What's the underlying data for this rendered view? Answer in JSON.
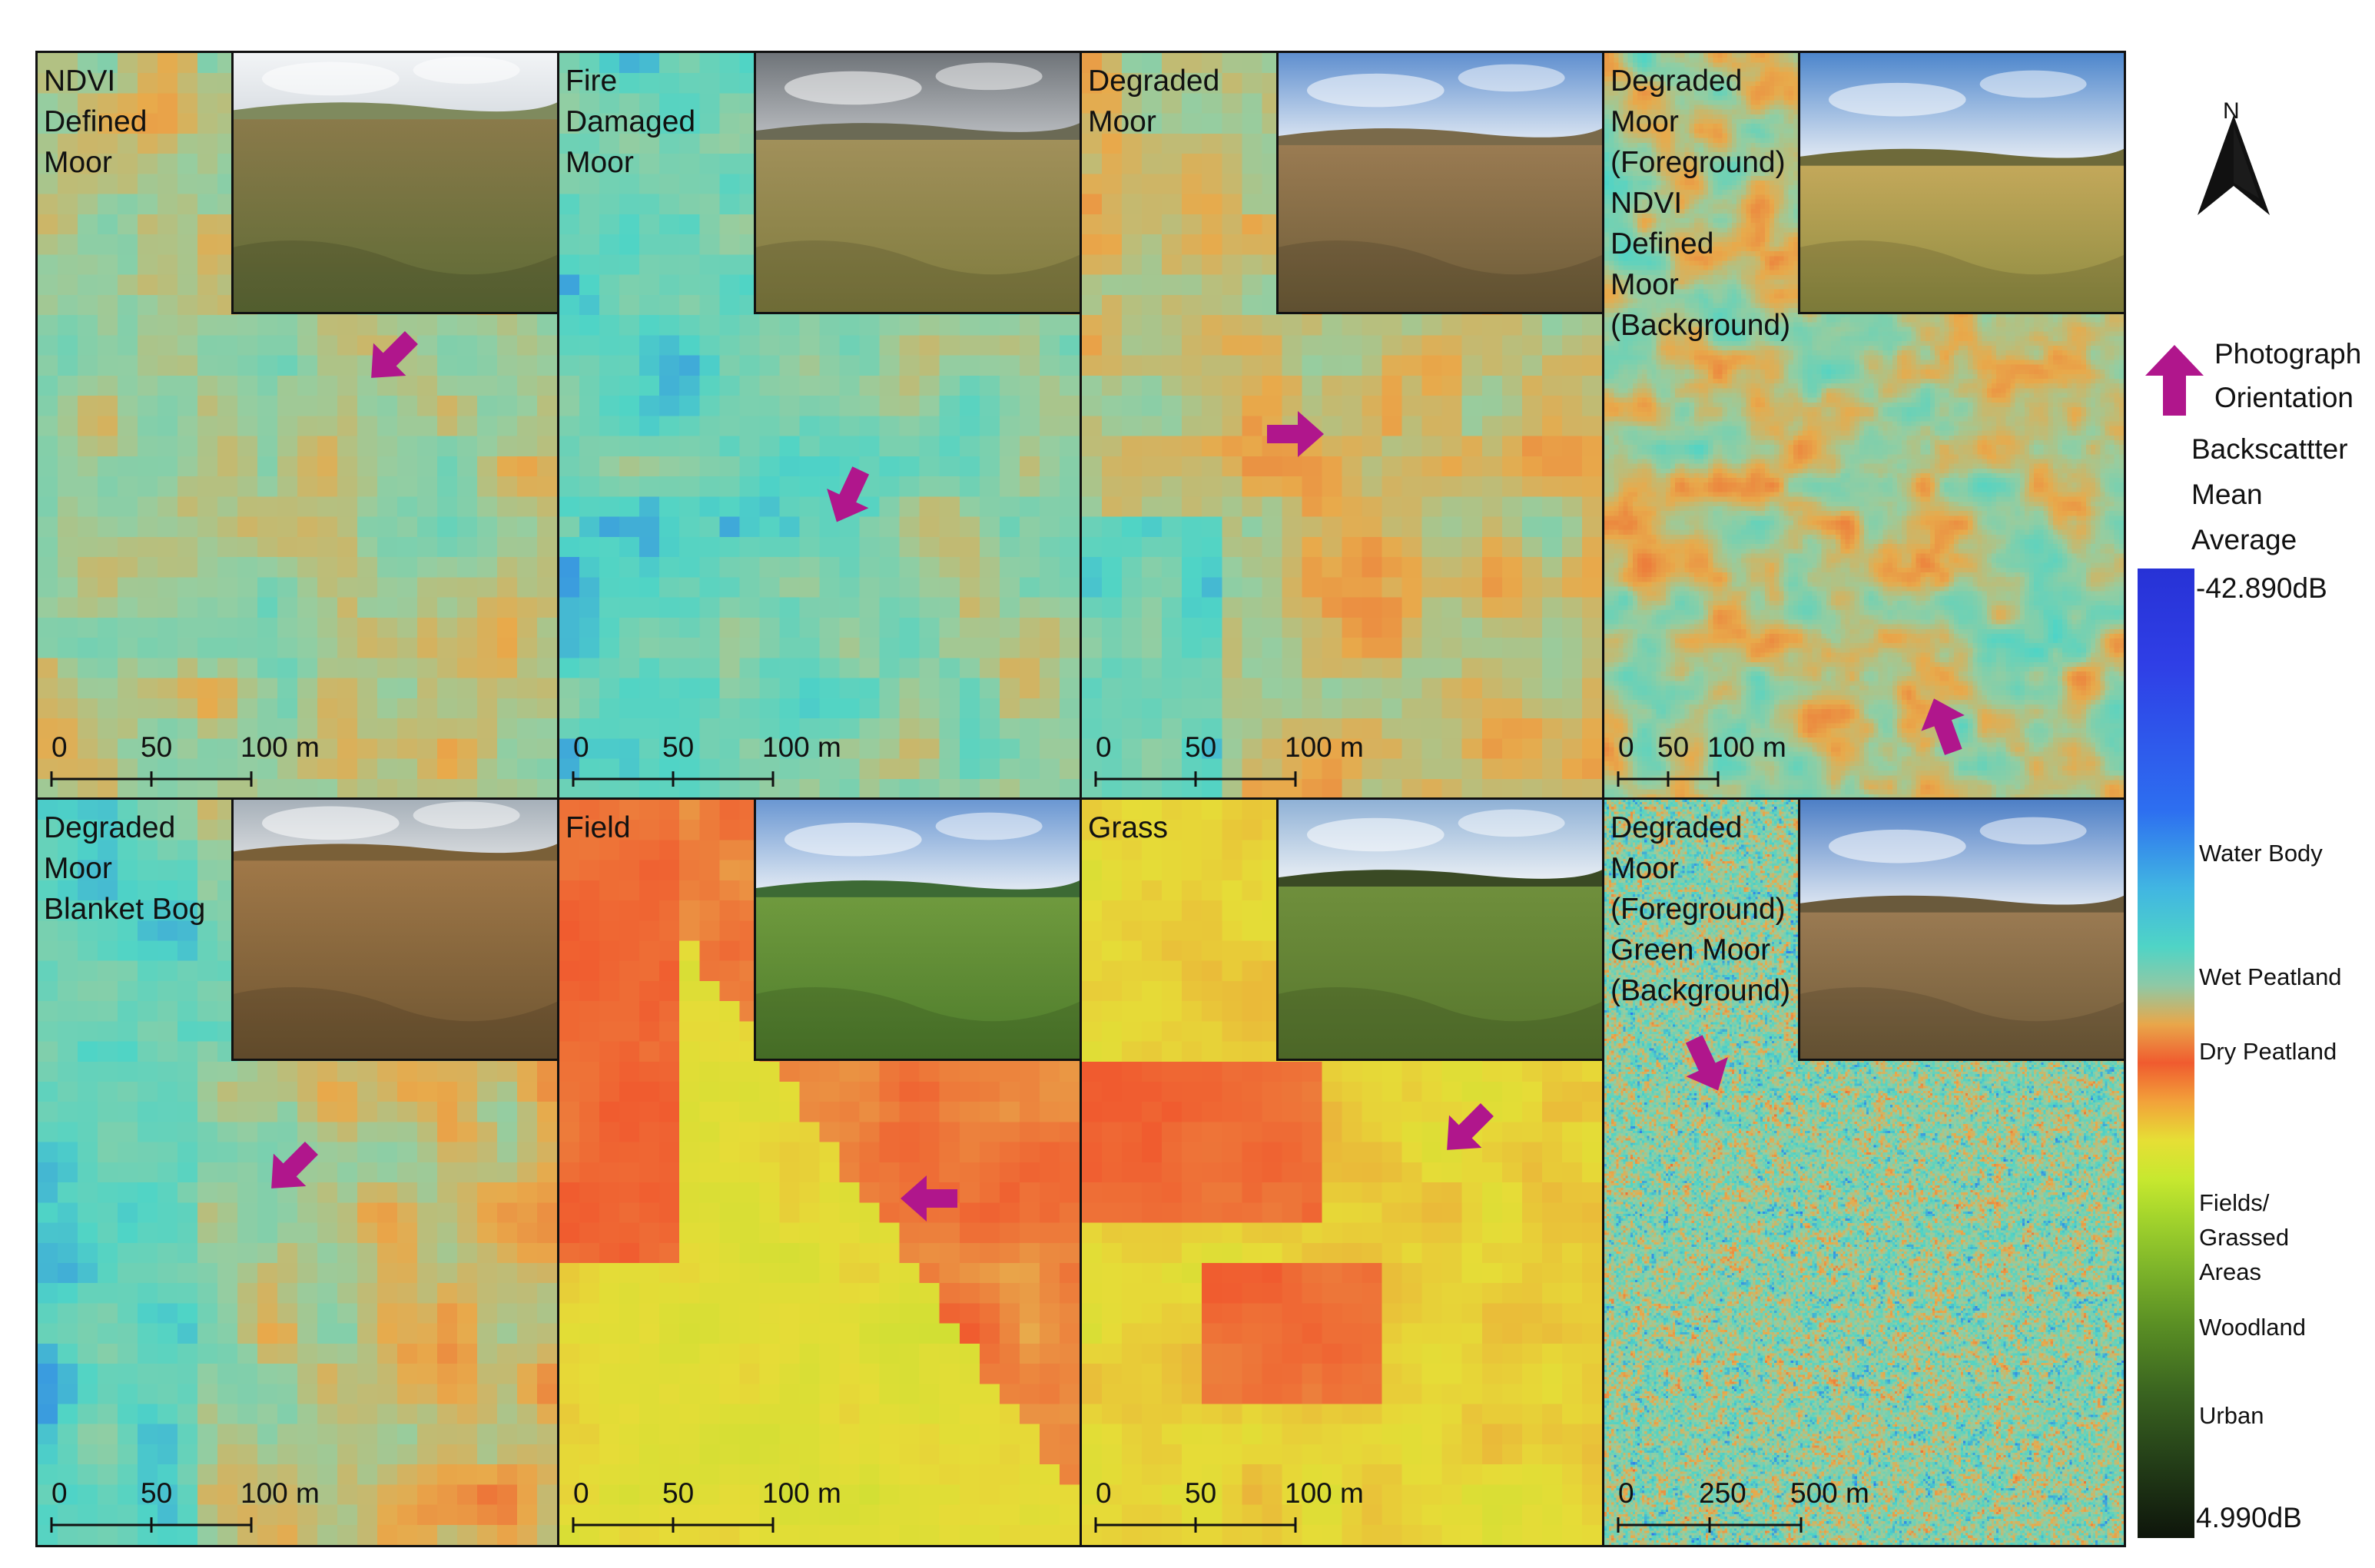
{
  "panels": [
    {
      "label": "NDVI\nDefined\nMoor",
      "scale": [
        "0",
        "50",
        "100 m"
      ],
      "arrow_direction": "down-left",
      "map_style": "moor",
      "photo": "moor-dry-grass"
    },
    {
      "label": "Fire\nDamaged\nMoor",
      "scale": [
        "0",
        "50",
        "100 m"
      ],
      "arrow_direction": "down-left-steep",
      "map_style": "wet",
      "photo": "fire-damaged-moor"
    },
    {
      "label": "Degraded\nMoor",
      "scale": [
        "0",
        "50",
        "100 m"
      ],
      "arrow_direction": "right",
      "map_style": "moor-dry",
      "photo": "degraded-moor-grass"
    },
    {
      "label": "Degraded\nMoor\n(Foreground)\nNDVI\nDefined\nMoor\n(Background)",
      "scale": [
        "0",
        "50",
        "100 m"
      ],
      "arrow_direction": "up-left",
      "map_style": "fine",
      "photo": "valley-fields"
    },
    {
      "label": "Degraded\nMoor\nBlanket Bog",
      "scale": [
        "0",
        "50",
        "100 m"
      ],
      "arrow_direction": "down-left",
      "map_style": "bog",
      "photo": "blanket-bog"
    },
    {
      "label": "Field",
      "scale": [
        "0",
        "50",
        "100 m"
      ],
      "arrow_direction": "left",
      "map_style": "field",
      "photo": "green-field"
    },
    {
      "label": "Grass",
      "scale": [
        "0",
        "50",
        "100 m"
      ],
      "arrow_direction": "down-left",
      "map_style": "grass",
      "photo": "grass-track"
    },
    {
      "label": "Degraded\nMoor\n(Foreground)\nGreen Moor\n(Background)",
      "scale": [
        "0",
        "250",
        "500 m"
      ],
      "arrow_direction": "down-right",
      "map_style": "speckle",
      "photo": "moor-fence-path"
    }
  ],
  "legend": {
    "north_label": "N",
    "photo_orientation_label": "Photograph\nOrientation",
    "colorbar_title": "Backscattter\nMean\nAverage",
    "colorbar_max": "-42.890dB",
    "colorbar_min": "4.990dB",
    "classes": [
      {
        "label": "Water Body",
        "level": 0.125
      },
      {
        "label": "Wet Peatland",
        "level": 0.18
      },
      {
        "label": "Dry Peatland",
        "level": 0.213
      },
      {
        "label": "Fields/\nGrassed\nAreas",
        "level": 0.28
      },
      {
        "label": "Woodland",
        "level": 0.335
      },
      {
        "label": "Urban",
        "level": 0.374
      }
    ],
    "colors": {
      "arrow": "#b0168c",
      "water": "#2f3fe6",
      "wet": "#4fd4c6",
      "dry": "#f05b2f",
      "field": "#e6df35",
      "woodland": "#9fd22c",
      "urban_dark": "#0e150b"
    }
  }
}
